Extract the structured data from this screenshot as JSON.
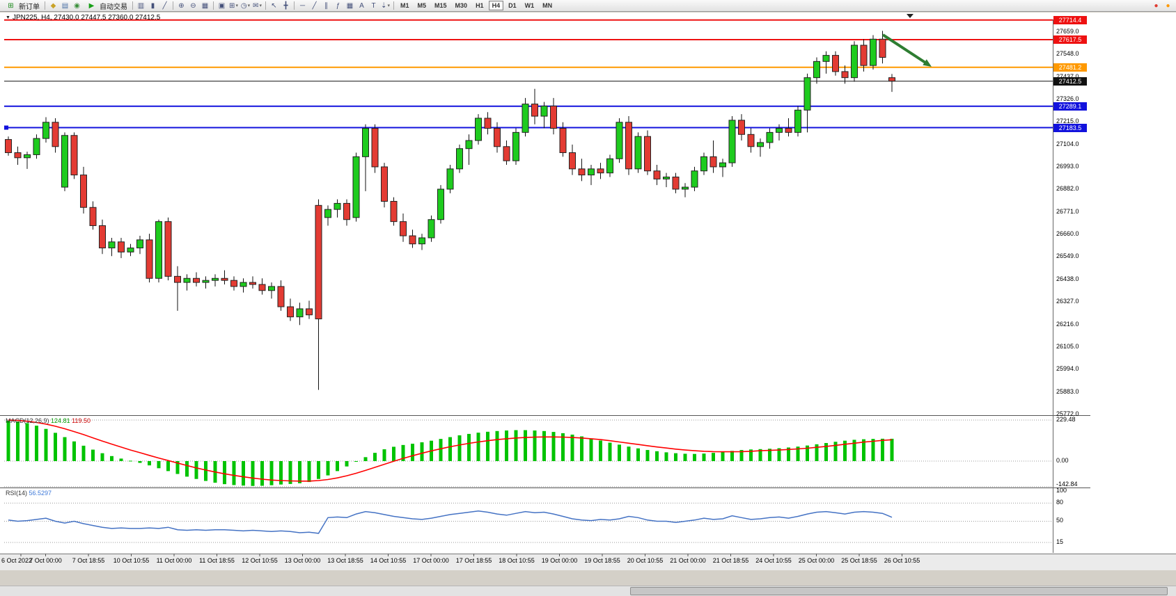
{
  "toolbar": {
    "items": [
      {
        "type": "button",
        "name": "new-order",
        "glyph": "⊞",
        "glyph_color": "#1c8a1c",
        "label": "新订单"
      },
      {
        "type": "sep"
      },
      {
        "type": "icon",
        "name": "expert-advisors",
        "glyph": "◆",
        "color": "#c9a227"
      },
      {
        "type": "icon",
        "name": "market-depth",
        "glyph": "▤",
        "color": "#4a6fa5"
      },
      {
        "type": "icon",
        "name": "mobile-apps",
        "glyph": "◉",
        "color": "#3a8f3a"
      },
      {
        "type": "button",
        "name": "auto-trading",
        "glyph": "▶",
        "glyph_color": "#18a018",
        "label": "自动交易"
      },
      {
        "type": "sep"
      },
      {
        "type": "icon",
        "name": "bar-chart-mode",
        "glyph": "▥"
      },
      {
        "type": "icon",
        "name": "candlestick-mode",
        "glyph": "▮"
      },
      {
        "type": "icon",
        "name": "line-chart-mode",
        "glyph": "╱"
      },
      {
        "type": "sep"
      },
      {
        "type": "icon",
        "name": "zoom-in",
        "glyph": "⊕"
      },
      {
        "type": "icon",
        "name": "zoom-out",
        "glyph": "⊖"
      },
      {
        "type": "icon",
        "name": "tile-windows",
        "glyph": "▦"
      },
      {
        "type": "sep"
      },
      {
        "type": "icon",
        "name": "arrange-windows",
        "glyph": "▣"
      },
      {
        "type": "icon",
        "name": "new-chart",
        "glyph": "⊞",
        "dropdown": true
      },
      {
        "type": "icon",
        "name": "periods",
        "glyph": "◷",
        "dropdown": true
      },
      {
        "type": "icon",
        "name": "templates",
        "glyph": "✉",
        "dropdown": true
      },
      {
        "type": "sep"
      },
      {
        "type": "icon",
        "name": "cursor",
        "glyph": "↖"
      },
      {
        "type": "icon",
        "name": "crosshair",
        "glyph": "╋"
      },
      {
        "type": "sep"
      },
      {
        "type": "icon",
        "name": "horizontal-line-tool",
        "glyph": "─"
      },
      {
        "type": "icon",
        "name": "trendline-tool",
        "glyph": "╱"
      },
      {
        "type": "icon",
        "name": "equidistant-channel-tool",
        "glyph": "∥"
      },
      {
        "type": "icon",
        "name": "fibonacci-tool",
        "glyph": "ƒ"
      },
      {
        "type": "icon",
        "name": "grid-tool",
        "glyph": "▦"
      },
      {
        "type": "icon",
        "name": "text-tool",
        "glyph": "A"
      },
      {
        "type": "icon",
        "name": "text-label-tool",
        "glyph": "T"
      },
      {
        "type": "icon",
        "name": "arrow-objects",
        "glyph": "⇣",
        "dropdown": true
      },
      {
        "type": "sep"
      },
      {
        "type": "tf",
        "label": "M1"
      },
      {
        "type": "tf",
        "label": "M5"
      },
      {
        "type": "tf",
        "label": "M15"
      },
      {
        "type": "tf",
        "label": "M30"
      },
      {
        "type": "tf",
        "label": "H1"
      },
      {
        "type": "tf",
        "label": "H4",
        "active": true
      },
      {
        "type": "tf",
        "label": "D1"
      },
      {
        "type": "tf",
        "label": "W1"
      },
      {
        "type": "tf",
        "label": "MN"
      },
      {
        "type": "spacer"
      },
      {
        "type": "icon",
        "name": "alert-indicator",
        "glyph": "●",
        "color": "#e03b30"
      },
      {
        "type": "icon",
        "name": "notification-indicator",
        "glyph": "●",
        "color": "#ff9800"
      }
    ]
  },
  "chart": {
    "title": "JPN225, H4, 27430.0 27447.5 27360.0 27412.5",
    "symbol": "JPN225",
    "period": "H4",
    "collapse_glyph": "▼"
  },
  "price_axis": {
    "ticks": [
      "27659.0",
      "27548.0",
      "27437.0",
      "27326.0",
      "27215.0",
      "27104.0",
      "26993.0",
      "26882.0",
      "26771.0",
      "26660.0",
      "26549.0",
      "26438.0",
      "26327.0",
      "26216.0",
      "26105.0",
      "25994.0",
      "25883.0",
      "25772.0"
    ],
    "levels": [
      {
        "label": "27714.4",
        "value": 27714.4,
        "color": "#ee1111",
        "thickness": 2,
        "role": "resistance-line"
      },
      {
        "label": "27617.5",
        "value": 27617.5,
        "color": "#ee1111",
        "thickness": 2,
        "role": "resistance-line"
      },
      {
        "label": "27481.2",
        "value": 27481.2,
        "color": "#ff9900",
        "thickness": 2,
        "role": "level-line"
      },
      {
        "label": "27412.5",
        "value": 27412.5,
        "color": "#111111",
        "thickness": 1,
        "role": "current-price-line"
      },
      {
        "label": "27289.1",
        "value": 27289.1,
        "color": "#1212dd",
        "thickness": 2,
        "role": "support-line"
      },
      {
        "label": "27183.5",
        "value": 27183.5,
        "color": "#1212dd",
        "thickness": 2,
        "role": "support-line",
        "handle": true
      }
    ]
  },
  "indicators": {
    "macd": {
      "name": "MACD(12,26,9)",
      "main_value": "124.81",
      "signal_value": "119.50",
      "axis": [
        "229.48",
        "0.00",
        "-142.84"
      ]
    },
    "rsi": {
      "name": "RSI(14)",
      "value": "56.5297",
      "axis": [
        "100",
        "80",
        "50",
        "15"
      ]
    }
  },
  "time_axis": {
    "labels": [
      "6 Oct 2022",
      "7 Oct 00:00",
      "7 Oct 18:55",
      "10 Oct 10:55",
      "11 Oct 00:00",
      "11 Oct 18:55",
      "12 Oct 10:55",
      "13 Oct 00:00",
      "13 Oct 18:55",
      "14 Oct 10:55",
      "17 Oct 00:00",
      "17 Oct 18:55",
      "18 Oct 10:55",
      "19 Oct 00:00",
      "19 Oct 18:55",
      "20 Oct 10:55",
      "21 Oct 00:00",
      "21 Oct 18:55",
      "24 Oct 10:55",
      "25 Oct 00:00",
      "25 Oct 18:55",
      "26 Oct 10:55"
    ]
  },
  "annotations": {
    "arrow_color": "#2e7d32"
  },
  "chart_data": [
    {
      "type": "candlestick",
      "name": "JPN225 H4",
      "up_color": "#1ecb1e",
      "down_color": "#e33b33",
      "ohlc": [
        [
          27125,
          27140,
          27045,
          27060
        ],
        [
          27060,
          27090,
          27000,
          27035
        ],
        [
          27035,
          27065,
          26980,
          27050
        ],
        [
          27050,
          27150,
          27030,
          27130
        ],
        [
          27130,
          27235,
          27110,
          27210
        ],
        [
          27210,
          27230,
          27060,
          27090
        ],
        [
          26890,
          27160,
          26870,
          27145
        ],
        [
          27145,
          27160,
          26930,
          26950
        ],
        [
          26950,
          26990,
          26760,
          26790
        ],
        [
          26790,
          26820,
          26680,
          26700
        ],
        [
          26700,
          26730,
          26560,
          26590
        ],
        [
          26590,
          26640,
          26550,
          26620
        ],
        [
          26620,
          26640,
          26540,
          26570
        ],
        [
          26570,
          26610,
          26550,
          26590
        ],
        [
          26590,
          26650,
          26560,
          26630
        ],
        [
          26630,
          26660,
          26420,
          26440
        ],
        [
          26440,
          26730,
          26420,
          26720
        ],
        [
          26720,
          26740,
          26430,
          26450
        ],
        [
          26450,
          26500,
          26280,
          26420
        ],
        [
          26420,
          26460,
          26380,
          26440
        ],
        [
          26440,
          26470,
          26400,
          26420
        ],
        [
          26420,
          26450,
          26390,
          26430
        ],
        [
          26430,
          26460,
          26400,
          26440
        ],
        [
          26440,
          26480,
          26410,
          26430
        ],
        [
          26430,
          26450,
          26380,
          26400
        ],
        [
          26400,
          26440,
          26370,
          26420
        ],
        [
          26420,
          26450,
          26390,
          26410
        ],
        [
          26410,
          26440,
          26360,
          26380
        ],
        [
          26380,
          26420,
          26340,
          26400
        ],
        [
          26400,
          26430,
          26280,
          26300
        ],
        [
          26300,
          26340,
          26230,
          26250
        ],
        [
          26250,
          26320,
          26210,
          26290
        ],
        [
          26290,
          26330,
          26240,
          26260
        ],
        [
          26800,
          26830,
          25890,
          26240
        ],
        [
          26740,
          26800,
          26700,
          26780
        ],
        [
          26780,
          26830,
          26740,
          26810
        ],
        [
          26810,
          26830,
          26700,
          26730
        ],
        [
          26740,
          27060,
          26720,
          27040
        ],
        [
          27040,
          27200,
          26870,
          27180
        ],
        [
          27180,
          27200,
          26960,
          26990
        ],
        [
          26990,
          27010,
          26790,
          26820
        ],
        [
          26820,
          26840,
          26700,
          26720
        ],
        [
          26720,
          26760,
          26620,
          26650
        ],
        [
          26650,
          26680,
          26590,
          26610
        ],
        [
          26610,
          26660,
          26580,
          26640
        ],
        [
          26640,
          26750,
          26620,
          26730
        ],
        [
          26730,
          26900,
          26710,
          26880
        ],
        [
          26880,
          27000,
          26860,
          26980
        ],
        [
          26980,
          27100,
          26960,
          27080
        ],
        [
          27080,
          27150,
          27000,
          27120
        ],
        [
          27120,
          27250,
          27100,
          27230
        ],
        [
          27230,
          27260,
          27150,
          27180
        ],
        [
          27180,
          27210,
          27060,
          27090
        ],
        [
          27090,
          27120,
          27000,
          27020
        ],
        [
          27020,
          27180,
          27000,
          27160
        ],
        [
          27160,
          27330,
          27140,
          27300
        ],
        [
          27300,
          27375,
          27200,
          27240
        ],
        [
          27240,
          27310,
          27180,
          27290
        ],
        [
          27290,
          27330,
          27150,
          27180
        ],
        [
          27180,
          27210,
          27040,
          27060
        ],
        [
          27060,
          27100,
          26950,
          26980
        ],
        [
          26980,
          27030,
          26920,
          26950
        ],
        [
          26950,
          27000,
          26900,
          26980
        ],
        [
          26980,
          27010,
          26930,
          26960
        ],
        [
          26960,
          27050,
          26940,
          27030
        ],
        [
          27030,
          27230,
          27010,
          27210
        ],
        [
          27210,
          27240,
          26950,
          26980
        ],
        [
          26980,
          27160,
          26960,
          27140
        ],
        [
          27140,
          27170,
          26950,
          26970
        ],
        [
          26970,
          27000,
          26900,
          26930
        ],
        [
          26930,
          26960,
          26890,
          26940
        ],
        [
          26940,
          26960,
          26860,
          26880
        ],
        [
          26880,
          26910,
          26840,
          26890
        ],
        [
          26890,
          26990,
          26870,
          26970
        ],
        [
          26970,
          27060,
          26950,
          27040
        ],
        [
          27040,
          27120,
          26960,
          26990
        ],
        [
          26990,
          27030,
          26940,
          27010
        ],
        [
          27010,
          27240,
          26990,
          27220
        ],
        [
          27220,
          27250,
          27120,
          27150
        ],
        [
          27150,
          27180,
          27060,
          27090
        ],
        [
          27090,
          27130,
          27040,
          27110
        ],
        [
          27110,
          27180,
          27080,
          27160
        ],
        [
          27160,
          27200,
          27120,
          27180
        ],
        [
          27180,
          27230,
          27140,
          27160
        ],
        [
          27160,
          27290,
          27140,
          27270
        ],
        [
          27270,
          27450,
          27160,
          27430
        ],
        [
          27430,
          27530,
          27400,
          27510
        ],
        [
          27510,
          27560,
          27450,
          27540
        ],
        [
          27540,
          27560,
          27440,
          27460
        ],
        [
          27460,
          27490,
          27400,
          27430
        ],
        [
          27430,
          27610,
          27410,
          27590
        ],
        [
          27590,
          27620,
          27460,
          27490
        ],
        [
          27490,
          27640,
          27470,
          27620
        ],
        [
          27620,
          27661,
          27500,
          27530
        ],
        [
          27430,
          27448,
          27360,
          27413
        ]
      ]
    },
    {
      "type": "bar",
      "name": "MACD(12,26,9)",
      "ylim": [
        -142.84,
        229.48
      ],
      "values": [
        226,
        221,
        212,
        198,
        180,
        158,
        134,
        110,
        86,
        64,
        44,
        28,
        14,
        2,
        -10,
        -24,
        -40,
        -56,
        -72,
        -87,
        -100,
        -111,
        -121,
        -129,
        -134,
        -137,
        -139,
        -138,
        -135,
        -131,
        -128,
        -124,
        -117,
        -100,
        -80,
        -56,
        -30,
        -4,
        22,
        46,
        66,
        80,
        90,
        97,
        105,
        114,
        124,
        134,
        144,
        152,
        159,
        164,
        168,
        171,
        173,
        173,
        171,
        168,
        163,
        156,
        148,
        138,
        127,
        115,
        103,
        92,
        81,
        71,
        62,
        55,
        49,
        44,
        41,
        40,
        42,
        46,
        51,
        57,
        62,
        65,
        67,
        69,
        72,
        76,
        81,
        87,
        94,
        101,
        108,
        114,
        119,
        122,
        124,
        125,
        124.81
      ],
      "signal": [
        229,
        227,
        223,
        216,
        207,
        195,
        181,
        165,
        148,
        130,
        112,
        95,
        78,
        62,
        47,
        32,
        17,
        3,
        -11,
        -25,
        -38,
        -50,
        -61,
        -71,
        -80,
        -88,
        -95,
        -101,
        -106,
        -109,
        -111,
        -112,
        -112,
        -109,
        -103,
        -94,
        -82,
        -68,
        -52,
        -35,
        -18,
        -1,
        15,
        30,
        44,
        57,
        69,
        80,
        90,
        99,
        107,
        114,
        120,
        125,
        129,
        132,
        134,
        135,
        135,
        134,
        132,
        129,
        125,
        120,
        114,
        107,
        100,
        93,
        86,
        79,
        73,
        67,
        62,
        58,
        55,
        53,
        52,
        52,
        53,
        55,
        58,
        60,
        62,
        65,
        68,
        72,
        77,
        82,
        88,
        94,
        100,
        106,
        111,
        116,
        119.5
      ]
    },
    {
      "type": "line",
      "name": "RSI(14)",
      "ylim": [
        0,
        100
      ],
      "levels": [
        80,
        50,
        15
      ],
      "values": [
        52,
        50,
        51,
        53,
        55,
        50,
        47,
        50,
        46,
        43,
        40,
        38,
        39,
        38,
        38,
        39,
        38,
        40,
        36,
        35,
        36,
        35,
        36,
        36,
        35,
        34,
        35,
        34,
        33,
        34,
        33,
        31,
        32,
        30,
        56,
        57,
        56,
        62,
        66,
        64,
        61,
        58,
        56,
        54,
        53,
        55,
        58,
        61,
        63,
        65,
        67,
        65,
        62,
        60,
        63,
        66,
        64,
        65,
        62,
        58,
        54,
        52,
        51,
        53,
        52,
        54,
        58,
        56,
        52,
        50,
        50,
        48,
        50,
        52,
        55,
        53,
        54,
        59,
        56,
        53,
        54,
        56,
        57,
        55,
        58,
        62,
        65,
        66,
        64,
        62,
        65,
        66,
        65,
        63,
        56.53
      ]
    }
  ]
}
